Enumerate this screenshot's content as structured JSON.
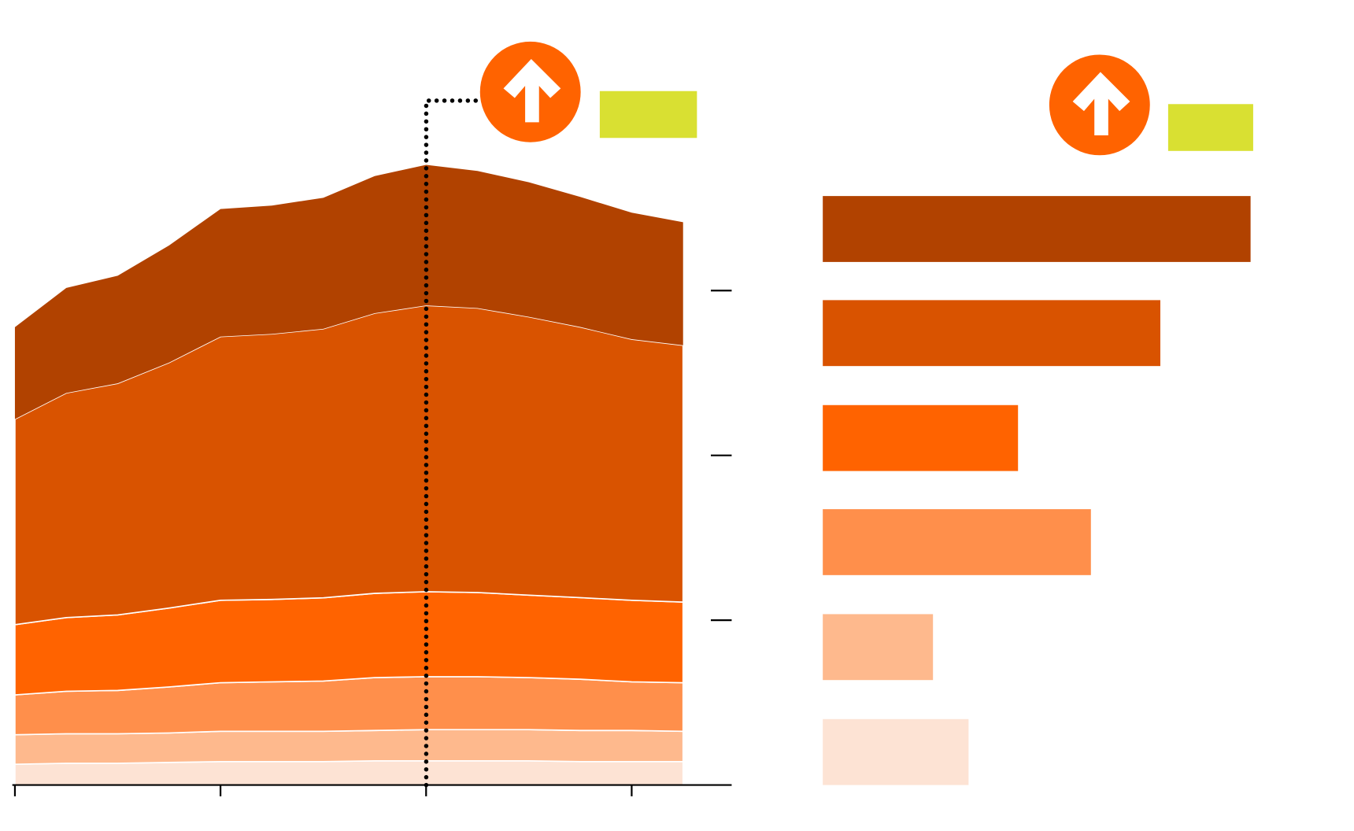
{
  "chart_data": [
    {
      "type": "stacked-area",
      "x": [
        0,
        1,
        2,
        3,
        4,
        5,
        6,
        7,
        8,
        9,
        10,
        11,
        12,
        13
      ],
      "xlim": [
        0,
        13
      ],
      "xticks": [
        0,
        4,
        8,
        12
      ],
      "ylim": [
        0,
        400
      ],
      "yticks": [
        100,
        200,
        300
      ],
      "series": [
        {
          "color": "#fde3d4",
          "values": [
            12.6,
            13.2,
            13.2,
            13.7,
            14.2,
            14.2,
            14.2,
            14.7,
            14.7,
            14.7,
            14.7,
            14.2,
            14.2,
            14.2
          ]
        },
        {
          "color": "#feb98d",
          "values": [
            17.9,
            17.9,
            17.9,
            17.9,
            18.4,
            18.4,
            18.4,
            18.4,
            18.9,
            18.9,
            18.9,
            18.9,
            18.9,
            18.4
          ]
        },
        {
          "color": "#ff8f4b",
          "values": [
            24.2,
            25.8,
            26.3,
            27.9,
            29.5,
            30,
            30.5,
            32.1,
            32.1,
            32.1,
            31.6,
            31.1,
            29.5,
            29.5
          ]
        },
        {
          "color": "#ff6300",
          "values": [
            42.6,
            44.7,
            45.8,
            47.9,
            50,
            50,
            50.5,
            51.1,
            51.6,
            51.1,
            50,
            49.5,
            49.5,
            48.9
          ]
        },
        {
          "color": "#d95300",
          "values": [
            124.7,
            136.3,
            140.5,
            148.9,
            160,
            161.1,
            163.2,
            170,
            173.7,
            172.6,
            168.9,
            164.2,
            158.4,
            155.8
          ]
        },
        {
          "color": "#b14200",
          "values": [
            55.8,
            63.7,
            65.3,
            71.1,
            77.4,
            77.9,
            79.5,
            83.2,
            85.3,
            83.2,
            81.6,
            78.9,
            76.8,
            74.7
          ]
        }
      ]
    },
    {
      "type": "hbar",
      "categories": [
        null,
        null,
        null,
        null,
        null,
        null
      ],
      "values": [
        493,
        389,
        225,
        309,
        127,
        168
      ],
      "colors": [
        "#b14200",
        "#d95300",
        "#ff6300",
        "#ff8f4b",
        "#feb98d",
        "#fde3d4"
      ],
      "xlim": [
        0,
        500
      ]
    }
  ]
}
